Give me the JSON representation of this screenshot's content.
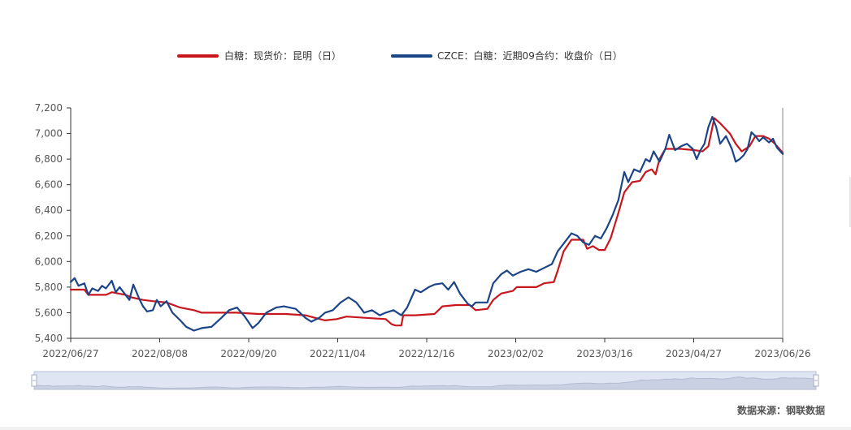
{
  "chart_data": {
    "type": "line",
    "ylim": [
      5400,
      7200
    ],
    "y_ticks": [
      "5,400",
      "5,600",
      "5,800",
      "6,000",
      "6,200",
      "6,400",
      "6,600",
      "6,800",
      "7,000",
      "7,200"
    ],
    "y_tick_values": [
      5400,
      5600,
      5800,
      6000,
      6200,
      6400,
      6600,
      6800,
      7000,
      7200
    ],
    "x_tick_labels": [
      "2022/06/27",
      "2022/08/08",
      "2022/09/20",
      "2022/11/04",
      "2022/12/16",
      "2023/02/02",
      "2023/03/16",
      "2023/04/27",
      "2023/06/26"
    ],
    "x_range": [
      "2022/06/27",
      "2023/06/26"
    ],
    "grid": false,
    "legend_position": "top-center",
    "series": [
      {
        "name": "白糖：现货价：昆明（日）",
        "color": "#c8161d",
        "points": [
          [
            "2022/06/27",
            5780
          ],
          [
            "2022/07/04",
            5780
          ],
          [
            "2022/07/06",
            5740
          ],
          [
            "2022/07/15",
            5740
          ],
          [
            "2022/07/18",
            5760
          ],
          [
            "2022/07/25",
            5740
          ],
          [
            "2022/07/28",
            5720
          ],
          [
            "2022/08/03",
            5700
          ],
          [
            "2022/08/08",
            5690
          ],
          [
            "2022/08/15",
            5680
          ],
          [
            "2022/08/22",
            5640
          ],
          [
            "2022/08/29",
            5620
          ],
          [
            "2022/09/02",
            5600
          ],
          [
            "2022/09/10",
            5600
          ],
          [
            "2022/09/20",
            5600
          ],
          [
            "2022/10/01",
            5590
          ],
          [
            "2022/10/15",
            5590
          ],
          [
            "2022/10/25",
            5580
          ],
          [
            "2022/10/30",
            5560
          ],
          [
            "2022/11/04",
            5540
          ],
          [
            "2022/11/10",
            5550
          ],
          [
            "2022/11/15",
            5570
          ],
          [
            "2022/11/25",
            5560
          ],
          [
            "2022/12/05",
            5550
          ],
          [
            "2022/12/08",
            5510
          ],
          [
            "2022/12/10",
            5500
          ],
          [
            "2022/12/13",
            5500
          ],
          [
            "2022/12/14",
            5580
          ],
          [
            "2022/12/20",
            5580
          ],
          [
            "2022/12/30",
            5590
          ],
          [
            "2023/01/03",
            5650
          ],
          [
            "2023/01/10",
            5660
          ],
          [
            "2023/01/17",
            5660
          ],
          [
            "2023/01/20",
            5620
          ],
          [
            "2023/01/26",
            5630
          ],
          [
            "2023/01/29",
            5700
          ],
          [
            "2023/02/02",
            5750
          ],
          [
            "2023/02/08",
            5770
          ],
          [
            "2023/02/10",
            5800
          ],
          [
            "2023/02/20",
            5800
          ],
          [
            "2023/02/24",
            5830
          ],
          [
            "2023/03/01",
            5840
          ],
          [
            "2023/03/03",
            5930
          ],
          [
            "2023/03/06",
            6080
          ],
          [
            "2023/03/10",
            6170
          ],
          [
            "2023/03/16",
            6170
          ],
          [
            "2023/03/18",
            6100
          ],
          [
            "2023/03/21",
            6120
          ],
          [
            "2023/03/24",
            6090
          ],
          [
            "2023/03/27",
            6090
          ],
          [
            "2023/03/30",
            6180
          ],
          [
            "2023/04/03",
            6380
          ],
          [
            "2023/04/06",
            6540
          ],
          [
            "2023/04/10",
            6620
          ],
          [
            "2023/04/14",
            6630
          ],
          [
            "2023/04/17",
            6700
          ],
          [
            "2023/04/20",
            6720
          ],
          [
            "2023/04/22",
            6680
          ],
          [
            "2023/04/24",
            6800
          ],
          [
            "2023/04/27",
            6880
          ],
          [
            "2023/05/05",
            6880
          ],
          [
            "2023/05/12",
            6870
          ],
          [
            "2023/05/16",
            6860
          ],
          [
            "2023/05/19",
            6900
          ],
          [
            "2023/05/22",
            7120
          ],
          [
            "2023/05/25",
            7080
          ],
          [
            "2023/05/30",
            7000
          ],
          [
            "2023/06/02",
            6920
          ],
          [
            "2023/06/05",
            6860
          ],
          [
            "2023/06/09",
            6900
          ],
          [
            "2023/06/12",
            6980
          ],
          [
            "2023/06/16",
            6980
          ],
          [
            "2023/06/19",
            6960
          ],
          [
            "2023/06/22",
            6920
          ],
          [
            "2023/06/26",
            6850
          ]
        ]
      },
      {
        "name": "CZCE：白糖：近期09合约：收盘价（日）",
        "color": "#1c4589",
        "points": [
          [
            "2022/06/27",
            5840
          ],
          [
            "2022/06/29",
            5870
          ],
          [
            "2022/07/01",
            5810
          ],
          [
            "2022/07/04",
            5830
          ],
          [
            "2022/07/06",
            5740
          ],
          [
            "2022/07/08",
            5790
          ],
          [
            "2022/07/11",
            5770
          ],
          [
            "2022/07/13",
            5810
          ],
          [
            "2022/07/15",
            5790
          ],
          [
            "2022/07/18",
            5850
          ],
          [
            "2022/07/20",
            5760
          ],
          [
            "2022/07/22",
            5800
          ],
          [
            "2022/07/25",
            5740
          ],
          [
            "2022/07/27",
            5700
          ],
          [
            "2022/07/29",
            5820
          ],
          [
            "2022/08/01",
            5710
          ],
          [
            "2022/08/03",
            5650
          ],
          [
            "2022/08/05",
            5610
          ],
          [
            "2022/08/08",
            5620
          ],
          [
            "2022/08/10",
            5700
          ],
          [
            "2022/08/12",
            5650
          ],
          [
            "2022/08/15",
            5690
          ],
          [
            "2022/08/18",
            5600
          ],
          [
            "2022/08/22",
            5540
          ],
          [
            "2022/08/25",
            5490
          ],
          [
            "2022/08/29",
            5460
          ],
          [
            "2022/09/02",
            5480
          ],
          [
            "2022/09/07",
            5490
          ],
          [
            "2022/09/12",
            5560
          ],
          [
            "2022/09/16",
            5620
          ],
          [
            "2022/09/20",
            5640
          ],
          [
            "2022/09/24",
            5570
          ],
          [
            "2022/09/28",
            5480
          ],
          [
            "2022/10/01",
            5520
          ],
          [
            "2022/10/05",
            5600
          ],
          [
            "2022/10/10",
            5640
          ],
          [
            "2022/10/14",
            5650
          ],
          [
            "2022/10/20",
            5630
          ],
          [
            "2022/10/25",
            5560
          ],
          [
            "2022/10/28",
            5530
          ],
          [
            "2022/11/01",
            5560
          ],
          [
            "2022/11/04",
            5600
          ],
          [
            "2022/11/08",
            5620
          ],
          [
            "2022/11/12",
            5680
          ],
          [
            "2022/11/16",
            5720
          ],
          [
            "2022/11/20",
            5680
          ],
          [
            "2022/11/24",
            5600
          ],
          [
            "2022/11/28",
            5620
          ],
          [
            "2022/12/02",
            5580
          ],
          [
            "2022/12/05",
            5600
          ],
          [
            "2022/12/09",
            5620
          ],
          [
            "2022/12/13",
            5580
          ],
          [
            "2022/12/16",
            5640
          ],
          [
            "2022/12/20",
            5780
          ],
          [
            "2022/12/23",
            5760
          ],
          [
            "2022/12/27",
            5800
          ],
          [
            "2022/12/30",
            5820
          ],
          [
            "2023/01/03",
            5830
          ],
          [
            "2023/01/06",
            5780
          ],
          [
            "2023/01/09",
            5840
          ],
          [
            "2023/01/12",
            5750
          ],
          [
            "2023/01/16",
            5670
          ],
          [
            "2023/01/18",
            5650
          ],
          [
            "2023/01/20",
            5680
          ],
          [
            "2023/01/26",
            5680
          ],
          [
            "2023/01/29",
            5830
          ],
          [
            "2023/02/02",
            5900
          ],
          [
            "2023/02/05",
            5930
          ],
          [
            "2023/02/08",
            5890
          ],
          [
            "2023/02/12",
            5920
          ],
          [
            "2023/02/16",
            5940
          ],
          [
            "2023/02/20",
            5920
          ],
          [
            "2023/02/24",
            5950
          ],
          [
            "2023/02/28",
            5980
          ],
          [
            "2023/03/03",
            6080
          ],
          [
            "2023/03/06",
            6140
          ],
          [
            "2023/03/10",
            6220
          ],
          [
            "2023/03/13",
            6200
          ],
          [
            "2023/03/16",
            6150
          ],
          [
            "2023/03/19",
            6130
          ],
          [
            "2023/03/22",
            6200
          ],
          [
            "2023/03/25",
            6180
          ],
          [
            "2023/03/28",
            6260
          ],
          [
            "2023/03/31",
            6360
          ],
          [
            "2023/04/03",
            6480
          ],
          [
            "2023/04/06",
            6700
          ],
          [
            "2023/04/08",
            6620
          ],
          [
            "2023/04/11",
            6720
          ],
          [
            "2023/04/14",
            6700
          ],
          [
            "2023/04/17",
            6800
          ],
          [
            "2023/04/19",
            6780
          ],
          [
            "2023/04/21",
            6860
          ],
          [
            "2023/04/24",
            6780
          ],
          [
            "2023/04/27",
            6880
          ],
          [
            "2023/04/29",
            6990
          ],
          [
            "2023/05/02",
            6870
          ],
          [
            "2023/05/05",
            6900
          ],
          [
            "2023/05/08",
            6920
          ],
          [
            "2023/05/11",
            6880
          ],
          [
            "2023/05/13",
            6800
          ],
          [
            "2023/05/15",
            6870
          ],
          [
            "2023/05/17",
            6920
          ],
          [
            "2023/05/19",
            7050
          ],
          [
            "2023/05/21",
            7130
          ],
          [
            "2023/05/23",
            7050
          ],
          [
            "2023/05/25",
            6920
          ],
          [
            "2023/05/28",
            6980
          ],
          [
            "2023/05/31",
            6880
          ],
          [
            "2023/06/02",
            6780
          ],
          [
            "2023/06/04",
            6800
          ],
          [
            "2023/06/06",
            6830
          ],
          [
            "2023/06/08",
            6880
          ],
          [
            "2023/06/10",
            7010
          ],
          [
            "2023/06/12",
            6980
          ],
          [
            "2023/06/14",
            6940
          ],
          [
            "2023/06/16",
            6970
          ],
          [
            "2023/06/19",
            6930
          ],
          [
            "2023/06/21",
            6960
          ],
          [
            "2023/06/23",
            6890
          ],
          [
            "2023/06/26",
            6840
          ]
        ]
      }
    ]
  },
  "source_text": "数据来源：钢联数据"
}
